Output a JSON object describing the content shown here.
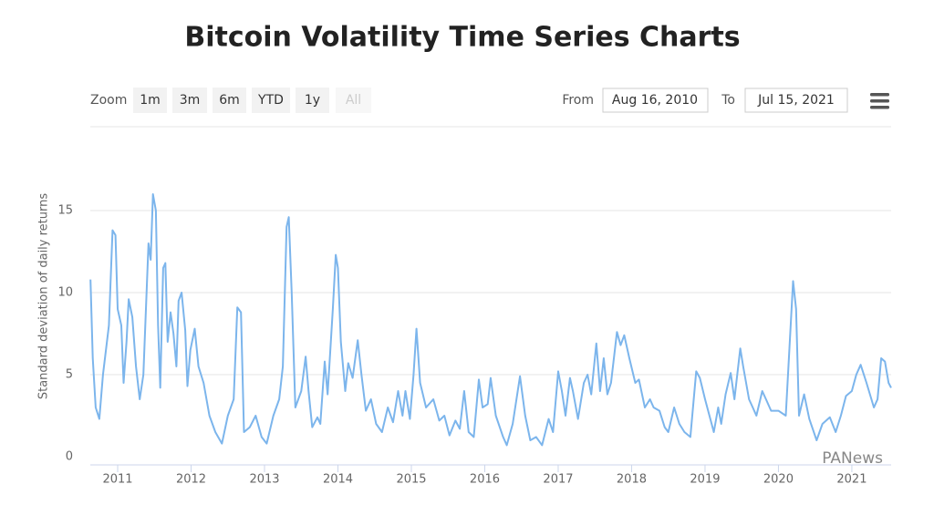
{
  "title": "Bitcoin Volatility Time Series Charts",
  "zoom": {
    "label": "Zoom",
    "buttons": [
      "1m",
      "3m",
      "6m",
      "YTD",
      "1y",
      "All"
    ]
  },
  "range": {
    "from_label": "From",
    "from": "Aug 16, 2010",
    "to_label": "To",
    "to": "Jul 15, 2021"
  },
  "watermark": "PANews",
  "chart_data": {
    "type": "line",
    "ylabel": "Standard deviation of daily returns",
    "color": "#7cb5ec",
    "grid": true,
    "xlim": [
      2010.627,
      2021.535
    ],
    "xticks": [
      2011,
      2012,
      2013,
      2014,
      2015,
      2016,
      2017,
      2018,
      2019,
      2020,
      2021
    ],
    "ylim": [
      -0.5,
      20
    ],
    "yticks": [
      0,
      5,
      10,
      15
    ],
    "x": [
      2010.63,
      2010.66,
      2010.7,
      2010.75,
      2010.8,
      2010.88,
      2010.93,
      2010.97,
      2011.0,
      2011.05,
      2011.08,
      2011.12,
      2011.15,
      2011.2,
      2011.25,
      2011.3,
      2011.35,
      2011.42,
      2011.45,
      2011.48,
      2011.52,
      2011.55,
      2011.58,
      2011.62,
      2011.65,
      2011.68,
      2011.72,
      2011.76,
      2011.8,
      2011.83,
      2011.87,
      2011.92,
      2011.95,
      2011.99,
      2012.05,
      2012.1,
      2012.17,
      2012.25,
      2012.33,
      2012.42,
      2012.5,
      2012.58,
      2012.63,
      2012.68,
      2012.72,
      2012.8,
      2012.88,
      2012.96,
      2013.03,
      2013.12,
      2013.2,
      2013.25,
      2013.3,
      2013.33,
      2013.37,
      2013.42,
      2013.5,
      2013.56,
      2013.6,
      2013.65,
      2013.72,
      2013.76,
      2013.82,
      2013.86,
      2013.93,
      2013.97,
      2014.0,
      2014.04,
      2014.1,
      2014.14,
      2014.2,
      2014.27,
      2014.32,
      2014.38,
      2014.45,
      2014.52,
      2014.6,
      2014.68,
      2014.75,
      2014.82,
      2014.88,
      2014.92,
      2014.98,
      2015.03,
      2015.07,
      2015.12,
      2015.2,
      2015.3,
      2015.38,
      2015.45,
      2015.52,
      2015.6,
      2015.66,
      2015.72,
      2015.78,
      2015.85,
      2015.92,
      2015.97,
      2016.04,
      2016.08,
      2016.15,
      2016.25,
      2016.3,
      2016.38,
      2016.48,
      2016.55,
      2016.62,
      2016.7,
      2016.78,
      2016.87,
      2016.93,
      2017.0,
      2017.05,
      2017.1,
      2017.16,
      2017.2,
      2017.27,
      2017.35,
      2017.4,
      2017.45,
      2017.52,
      2017.57,
      2017.62,
      2017.67,
      2017.72,
      2017.8,
      2017.85,
      2017.9,
      2017.97,
      2018.05,
      2018.1,
      2018.18,
      2018.25,
      2018.3,
      2018.38,
      2018.45,
      2018.5,
      2018.58,
      2018.65,
      2018.72,
      2018.8,
      2018.88,
      2018.93,
      2019.0,
      2019.06,
      2019.12,
      2019.18,
      2019.22,
      2019.28,
      2019.35,
      2019.4,
      2019.48,
      2019.52,
      2019.6,
      2019.65,
      2019.7,
      2019.78,
      2019.83,
      2019.9,
      2020.0,
      2020.1,
      2020.2,
      2020.24,
      2020.28,
      2020.35,
      2020.42,
      2020.52,
      2020.6,
      2020.7,
      2020.78,
      2020.85,
      2020.92,
      2021.0,
      2021.06,
      2021.12,
      2021.2,
      2021.3,
      2021.35,
      2021.4,
      2021.45,
      2021.5,
      2021.535
    ],
    "values": [
      10.8,
      6,
      3,
      2.3,
      5,
      8,
      13.8,
      13.5,
      9,
      8,
      4.5,
      7,
      9.6,
      8.5,
      5.5,
      3.5,
      5,
      13,
      12,
      16,
      15,
      8,
      4.2,
      11.5,
      11.8,
      7,
      8.8,
      7.5,
      5.5,
      9.5,
      10,
      7.7,
      4.3,
      6.5,
      7.8,
      5.5,
      4.5,
      2.5,
      1.5,
      0.8,
      2.5,
      3.5,
      9.1,
      8.8,
      1.5,
      1.8,
      2.5,
      1.2,
      0.8,
      2.5,
      3.5,
      5.5,
      14,
      14.6,
      10,
      3,
      4,
      6.1,
      4,
      1.8,
      2.4,
      2,
      5.8,
      3.8,
      9,
      12.3,
      11.5,
      7,
      4,
      5.7,
      4.8,
      7.1,
      5,
      2.8,
      3.5,
      2,
      1.5,
      3,
      2.1,
      4,
      2.5,
      4,
      2.3,
      5,
      7.8,
      4.5,
      3,
      3.5,
      2.2,
      2.5,
      1.3,
      2.2,
      1.7,
      4,
      1.5,
      1.2,
      4.7,
      3,
      3.2,
      4.8,
      2.5,
      1.2,
      0.7,
      2,
      4.9,
      2.5,
      1,
      1.2,
      0.7,
      2.3,
      1.5,
      5.2,
      4,
      2.5,
      4.8,
      4,
      2.3,
      4.5,
      5,
      3.8,
      6.9,
      4,
      6,
      3.8,
      4.5,
      7.6,
      6.8,
      7.4,
      6,
      4.5,
      4.7,
      3,
      3.5,
      3,
      2.8,
      1.8,
      1.5,
      3,
      2,
      1.5,
      1.2,
      5.2,
      4.8,
      3.5,
      2.5,
      1.5,
      3,
      2,
      3.8,
      5.1,
      3.5,
      6.6,
      5.5,
      3.5,
      3,
      2.5,
      4,
      3.5,
      2.8,
      2.8,
      2.5,
      10.7,
      9,
      2.5,
      3.8,
      2.3,
      1,
      2,
      2.4,
      1.5,
      2.5,
      3.7,
      4,
      5,
      5.6,
      4.5,
      3,
      3.5,
      6,
      5.8,
      4.5,
      4.2
    ]
  }
}
